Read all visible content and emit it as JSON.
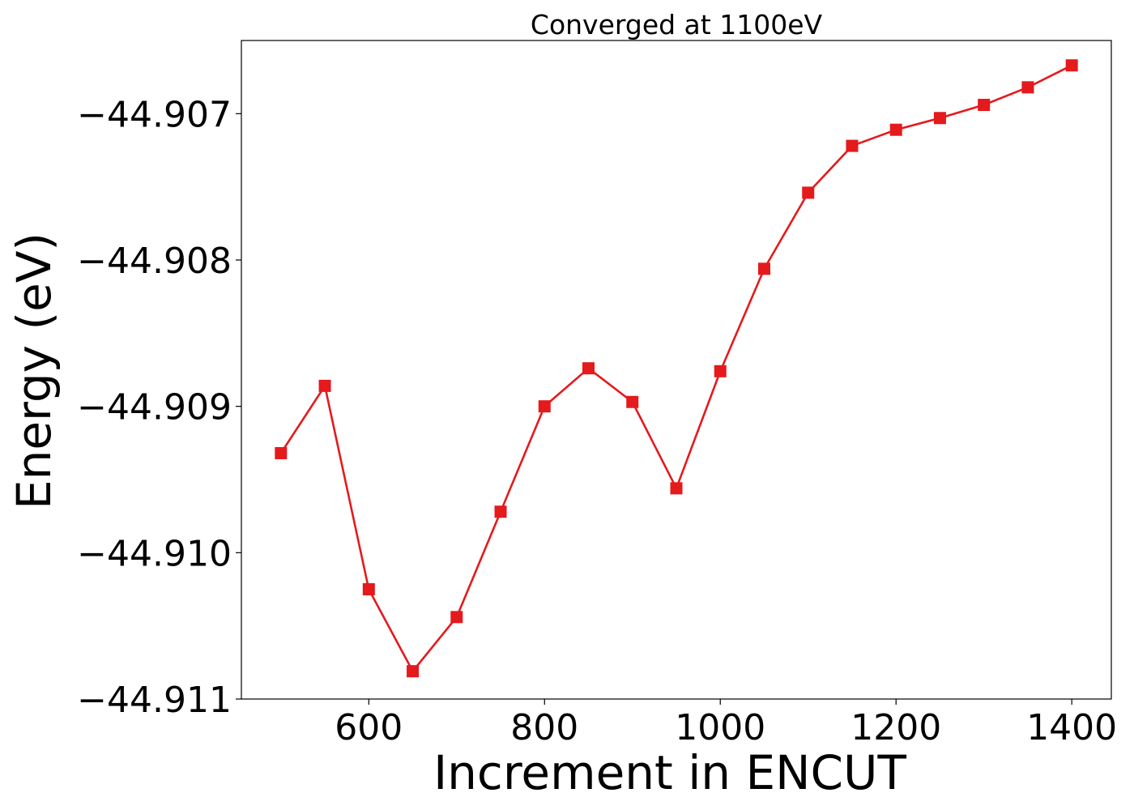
{
  "chart_data": {
    "type": "line",
    "title": "Converged at 1100eV",
    "xlabel": "Increment in ENCUT",
    "ylabel": "Energy (eV)",
    "x": [
      500,
      550,
      600,
      650,
      700,
      750,
      800,
      850,
      900,
      950,
      1000,
      1050,
      1100,
      1150,
      1200,
      1250,
      1300,
      1350,
      1400
    ],
    "series": [
      {
        "name": "",
        "color": "#e41a1c",
        "marker": "square",
        "values": [
          -44.90932,
          -44.90886,
          -44.91025,
          -44.91081,
          -44.91044,
          -44.90972,
          -44.909,
          -44.90874,
          -44.90897,
          -44.90956,
          -44.90876,
          -44.90806,
          -44.90754,
          -44.90722,
          -44.90711,
          -44.90703,
          -44.90694,
          -44.90682,
          -44.90667
        ]
      }
    ],
    "xlim": [
      455,
      1445
    ],
    "ylim": [
      -44.911,
      -44.9065
    ],
    "xticks": [
      600,
      800,
      1000,
      1200,
      1400
    ],
    "xtick_labels": [
      "600",
      "800",
      "1000",
      "1200",
      "1400"
    ],
    "yticks": [
      -44.911,
      -44.91,
      -44.909,
      -44.908,
      -44.907
    ],
    "ytick_labels": [
      "−44.911",
      "−44.910",
      "−44.909",
      "−44.908",
      "−44.907"
    ],
    "grid": false,
    "legend": "none"
  }
}
